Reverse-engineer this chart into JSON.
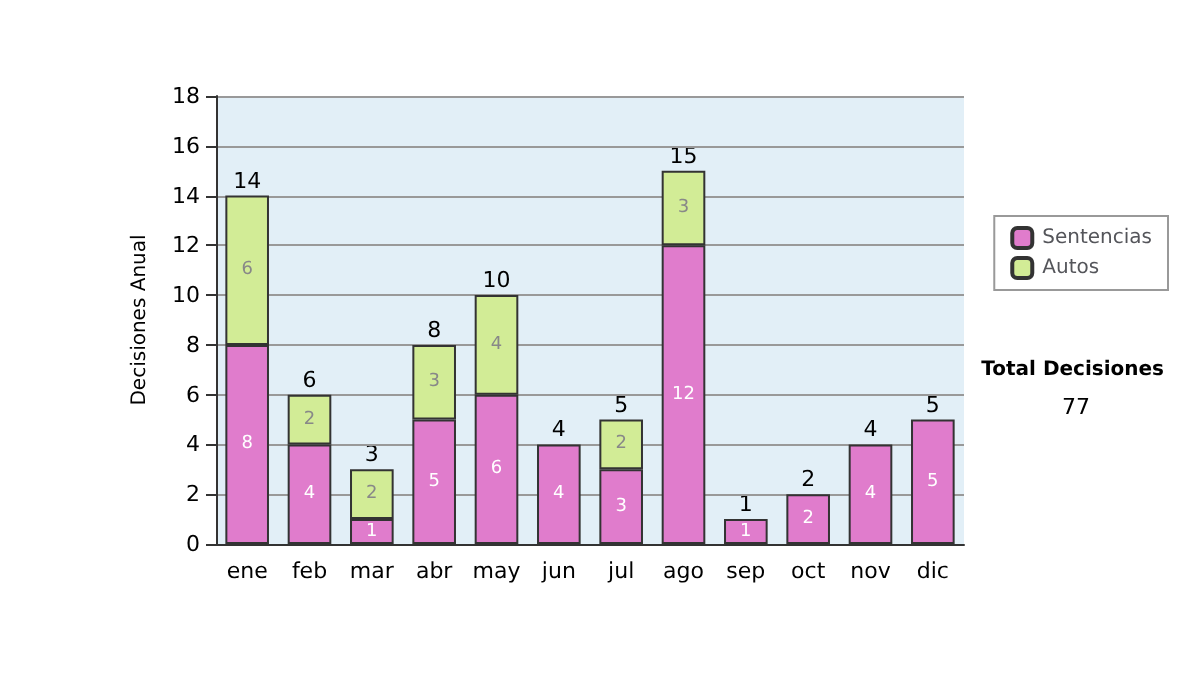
{
  "chart_data": {
    "type": "bar",
    "stacked": true,
    "ylabel": "Decisiones Anual",
    "categories": [
      "ene",
      "feb",
      "mar",
      "abr",
      "may",
      "jun",
      "jul",
      "ago",
      "sep",
      "oct",
      "nov",
      "dic"
    ],
    "series": [
      {
        "name": "Sentencias",
        "color": "#e07ccc",
        "values": [
          8,
          4,
          1,
          5,
          6,
          4,
          3,
          12,
          1,
          2,
          4,
          5
        ],
        "value_labels": [
          "8",
          "4",
          "1",
          "5",
          "6",
          "4",
          "3",
          "12",
          "1",
          "2",
          "4",
          "5"
        ]
      },
      {
        "name": "Autos",
        "color": "#d2ec96",
        "values": [
          6,
          2,
          2,
          3,
          4,
          0,
          2,
          3,
          0,
          0,
          0,
          0
        ],
        "value_labels": [
          "6",
          "2",
          "2",
          "3",
          "4",
          null,
          "2",
          "3",
          null,
          null,
          null,
          null
        ]
      }
    ],
    "totals": [
      "14",
      "6",
      "3",
      "8",
      "10",
      "4",
      "5",
      "15",
      "1",
      "2",
      "4",
      "5"
    ],
    "ylim": [
      0,
      18
    ],
    "yticks": [
      0,
      2,
      4,
      6,
      8,
      10,
      12,
      14,
      16,
      18
    ],
    "grid": "y",
    "legend": "right",
    "annotations": [
      "Total Decisiones",
      "77"
    ]
  }
}
